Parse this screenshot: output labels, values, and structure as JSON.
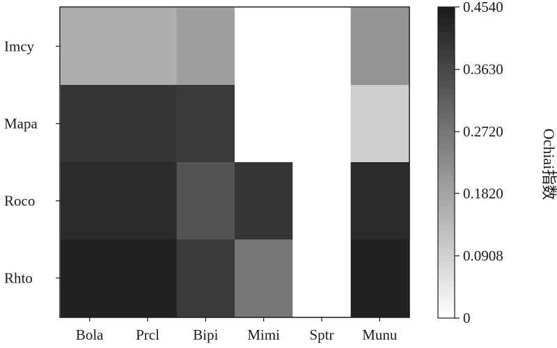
{
  "chart_data": {
    "type": "heatmap",
    "title": "",
    "xlabel": "",
    "ylabel": "",
    "x_categories": [
      "Bola",
      "Prcl",
      "Bipi",
      "Mimi",
      "Sptr",
      "Munu"
    ],
    "y_categories": [
      "Imcy",
      "Mapa",
      "Roco",
      "Rhto"
    ],
    "values": [
      [
        0.16,
        0.16,
        0.19,
        0,
        0,
        0.21
      ],
      [
        0.4,
        0.4,
        0.39,
        0,
        0,
        0.1
      ],
      [
        0.42,
        0.42,
        0.34,
        0.4,
        0,
        0.42
      ],
      [
        0.44,
        0.44,
        0.39,
        0.27,
        0,
        0.44
      ]
    ],
    "colorbar": {
      "label": "Ochiai指数",
      "min": 0,
      "max": 0.454,
      "ticks": [
        {
          "value": 0,
          "label": "0"
        },
        {
          "value": 0.0908,
          "label": "0.0908"
        },
        {
          "value": 0.182,
          "label": "0.1820"
        },
        {
          "value": 0.272,
          "label": "0.2720"
        },
        {
          "value": 0.363,
          "label": "0.3630"
        },
        {
          "value": 0.454,
          "label": "0.4540"
        }
      ],
      "colormap": "white-to-black grayscale",
      "color_low": "#ffffff",
      "color_high": "#1a1a1a"
    }
  }
}
